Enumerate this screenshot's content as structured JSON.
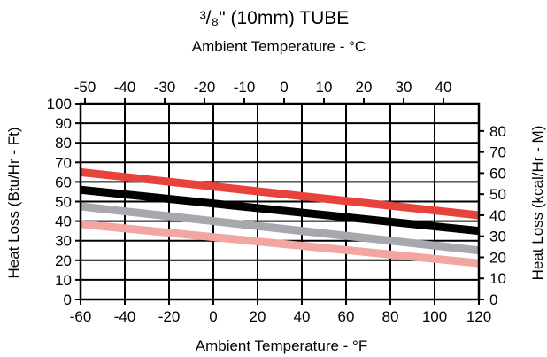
{
  "chart_data": {
    "type": "line",
    "title": "³/₈\" (10mm) TUBE",
    "top_axis": {
      "label": "Ambient Temperature - °C",
      "ticks": [
        "-50",
        "-40",
        "-30",
        "-20",
        "-10",
        "0",
        "10",
        "20",
        "30",
        "40"
      ],
      "tick_values": [
        -50,
        -40,
        -30,
        -20,
        -10,
        0,
        10,
        20,
        30,
        40
      ]
    },
    "xlabel": "Ambient Temperature - °F",
    "x_ticks": [
      "-60",
      "-40",
      "-20",
      "0",
      "20",
      "40",
      "60",
      "80",
      "100",
      "120"
    ],
    "xlim": [
      -60,
      120
    ],
    "ylabel": "Heat Loss (Btu/Hr - Ft)",
    "y_ticks": [
      "0",
      "10",
      "20",
      "30",
      "40",
      "50",
      "60",
      "70",
      "80",
      "90",
      "100"
    ],
    "ylim": [
      0,
      100
    ],
    "right_axis": {
      "label": "Heat Loss (kcal/Hr - M)",
      "ticks": [
        "0",
        "10",
        "20",
        "30",
        "40",
        "50",
        "60",
        "70",
        "80"
      ],
      "tick_values": [
        0,
        10,
        20,
        30,
        40,
        50,
        60,
        70,
        80
      ]
    },
    "grid": true,
    "legend": "none",
    "series": [
      {
        "color": "#e8423c",
        "x": [
          -60,
          120
        ],
        "y": [
          65,
          43
        ]
      },
      {
        "color": "#000000",
        "x": [
          -60,
          120
        ],
        "y": [
          56,
          35
        ]
      },
      {
        "color": "#a7a8ad",
        "x": [
          -60,
          120
        ],
        "y": [
          47.5,
          25
        ]
      },
      {
        "color": "#f3a5a1",
        "x": [
          -60,
          120
        ],
        "y": [
          38.5,
          18.5
        ]
      }
    ]
  }
}
